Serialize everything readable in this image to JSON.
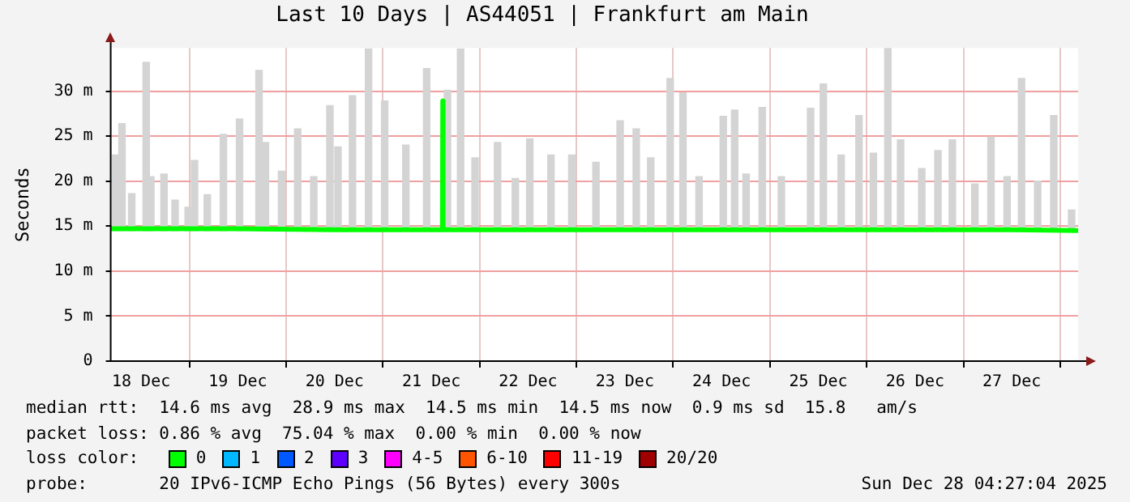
{
  "chart_data": {
    "type": "line",
    "title": "Last 10 Days | AS44051 | Frankfurt am Main",
    "ylabel": "Seconds",
    "legend_title": "loss color:",
    "legend": "bottom",
    "grid": true,
    "marker": "none",
    "line_style": "solid",
    "xlim": [
      "2025-12-18T04:27",
      "2025-12-28T04:27"
    ],
    "xticks": [
      {
        "value": "2025-12-18T12:00",
        "label": "18 Dec"
      },
      {
        "value": "2025-12-19T12:00",
        "label": "19 Dec"
      },
      {
        "value": "2025-12-20T12:00",
        "label": "20 Dec"
      },
      {
        "value": "2025-12-21T12:00",
        "label": "21 Dec"
      },
      {
        "value": "2025-12-22T12:00",
        "label": "22 Dec"
      },
      {
        "value": "2025-12-23T12:00",
        "label": "23 Dec"
      },
      {
        "value": "2025-12-24T12:00",
        "label": "24 Dec"
      },
      {
        "value": "2025-12-25T12:00",
        "label": "25 Dec"
      },
      {
        "value": "2025-12-26T12:00",
        "label": "26 Dec"
      },
      {
        "value": "2025-12-27T12:00",
        "label": "27 Dec"
      }
    ],
    "ylim": [
      0,
      34.8
    ],
    "yticks": [
      0,
      {
        "value": 5,
        "label": "5 m"
      },
      {
        "value": 10,
        "label": "10 m"
      },
      {
        "value": 15,
        "label": "15 m"
      },
      {
        "value": 20,
        "label": "20 m"
      },
      {
        "value": 25,
        "label": "25 m"
      },
      {
        "value": 30,
        "label": "30 m"
      }
    ],
    "series": [
      {
        "type": "bar",
        "color": "#d4d4d4",
        "x": [
          "2025-12-18T05:40",
          "2025-12-18T07:15",
          "2025-12-18T09:40",
          "2025-12-18T13:15",
          "2025-12-18T14:25",
          "2025-12-18T17:40",
          "2025-12-18T20:25",
          "2025-12-18T23:40",
          "2025-12-19T01:15",
          "2025-12-19T04:25",
          "2025-12-19T08:25",
          "2025-12-19T12:25",
          "2025-12-19T17:15",
          "2025-12-19T18:50",
          "2025-12-19T22:50",
          "2025-12-20T02:50",
          "2025-12-20T06:50",
          "2025-12-20T10:50",
          "2025-12-20T12:50",
          "2025-12-20T16:25",
          "2025-12-20T20:25",
          "2025-12-21T00:25",
          "2025-12-21T05:40",
          "2025-12-21T10:50",
          "2025-12-21T16:00",
          "2025-12-21T19:15",
          "2025-12-21T22:50",
          "2025-12-22T04:25",
          "2025-12-22T08:50",
          "2025-12-22T12:25",
          "2025-12-22T17:40",
          "2025-12-22T22:50",
          "2025-12-23T04:50",
          "2025-12-23T10:50",
          "2025-12-23T14:50",
          "2025-12-23T18:25",
          "2025-12-23T23:15",
          "2025-12-24T02:25",
          "2025-12-24T06:25",
          "2025-12-24T12:25",
          "2025-12-24T15:15",
          "2025-12-24T18:05",
          "2025-12-24T22:05",
          "2025-12-25T02:50",
          "2025-12-25T10:05",
          "2025-12-25T13:15",
          "2025-12-25T17:40",
          "2025-12-25T22:05",
          "2025-12-26T01:40",
          "2025-12-26T05:15",
          "2025-12-26T08:25",
          "2025-12-26T13:40",
          "2025-12-26T17:40",
          "2025-12-26T21:15",
          "2025-12-27T02:50",
          "2025-12-27T06:50",
          "2025-12-27T10:50",
          "2025-12-27T14:25",
          "2025-12-27T18:25",
          "2025-12-27T22:25",
          "2025-12-28T02:50"
        ],
        "base": [
          14.5,
          14.5,
          14.5,
          14.5,
          14.5,
          14.5,
          14.5,
          14.5,
          14.5,
          14.5,
          14.5,
          14.5,
          14.5,
          14.5,
          14.5,
          14.5,
          14.5,
          14.5,
          14.5,
          14.5,
          14.5,
          14.5,
          14.5,
          14.5,
          14.5,
          14.5,
          14.5,
          14.5,
          14.5,
          14.5,
          14.5,
          14.5,
          14.5,
          14.5,
          14.5,
          14.5,
          14.5,
          14.5,
          14.5,
          14.5,
          14.5,
          14.5,
          14.5,
          14.5,
          14.5,
          14.5,
          14.5,
          14.5,
          14.5,
          14.5,
          14.5,
          14.5,
          14.5,
          14.5,
          14.5,
          14.5,
          14.5,
          14.5,
          14.5,
          14.5,
          14.5
        ],
        "values": [
          8.4,
          11.9,
          4.1,
          18.7,
          6,
          6.3,
          3.4,
          2.6,
          7.8,
          4,
          10.7,
          12.4,
          17.8,
          9.8,
          6.6,
          11.3,
          6,
          13.9,
          9.3,
          15,
          20.2,
          14.4,
          9.5,
          18,
          15.6,
          20.2,
          8.1,
          9.8,
          5.8,
          10.2,
          8.4,
          8.4,
          7.6,
          12.2,
          11.3,
          8.1,
          16.9,
          15.3,
          6,
          12.7,
          13.4,
          6.3,
          13.7,
          6,
          13.6,
          16.3,
          8.4,
          12.8,
          8.6,
          20.3,
          10.1,
          6.9,
          8.9,
          10.1,
          5.2,
          10.4,
          6,
          16.9,
          5.5,
          12.8,
          2.3
        ]
      },
      {
        "name": "0",
        "color": "#00ff00",
        "x": [
          "2025-12-18T04:27",
          "2025-12-19T12:00",
          "2025-12-20T12:00",
          "2025-12-21T14:45",
          "2025-12-21T14:50",
          "2025-12-21T14:55",
          "2025-12-22T12:00",
          "2025-12-23T12:00",
          "2025-12-24T12:00",
          "2025-12-25T12:00",
          "2025-12-26T12:00",
          "2025-12-27T12:00",
          "2025-12-28T04:27"
        ],
        "values": [
          14.7,
          14.7,
          14.6,
          14.6,
          28.9,
          14.6,
          14.6,
          14.6,
          14.6,
          14.6,
          14.6,
          14.6,
          14.5
        ]
      },
      {
        "name": "1",
        "color": "#00b8ff"
      },
      {
        "name": "2",
        "color": "#0059ff"
      },
      {
        "name": "3",
        "color": "#5e00ff"
      },
      {
        "name": "4-5",
        "color": "#ff00ff"
      },
      {
        "name": "6-10",
        "color": "#ff5500"
      },
      {
        "name": "11-19",
        "color": "#ff0000"
      },
      {
        "name": "20/20",
        "color": "#a10000"
      }
    ],
    "annotations": [
      "median rtt:  14.6 ms avg  28.9 ms max  14.5 ms min  14.5 ms now  0.9 ms sd  15.8   am/s",
      "packet loss: 0.86 % avg  75.04 % max  0.00 % min  0.00 % now",
      "probe:       20 IPv6-ICMP Echo Pings (56 Bytes) every 300s",
      "Sun Dec 28 04:27:04 2025"
    ]
  }
}
